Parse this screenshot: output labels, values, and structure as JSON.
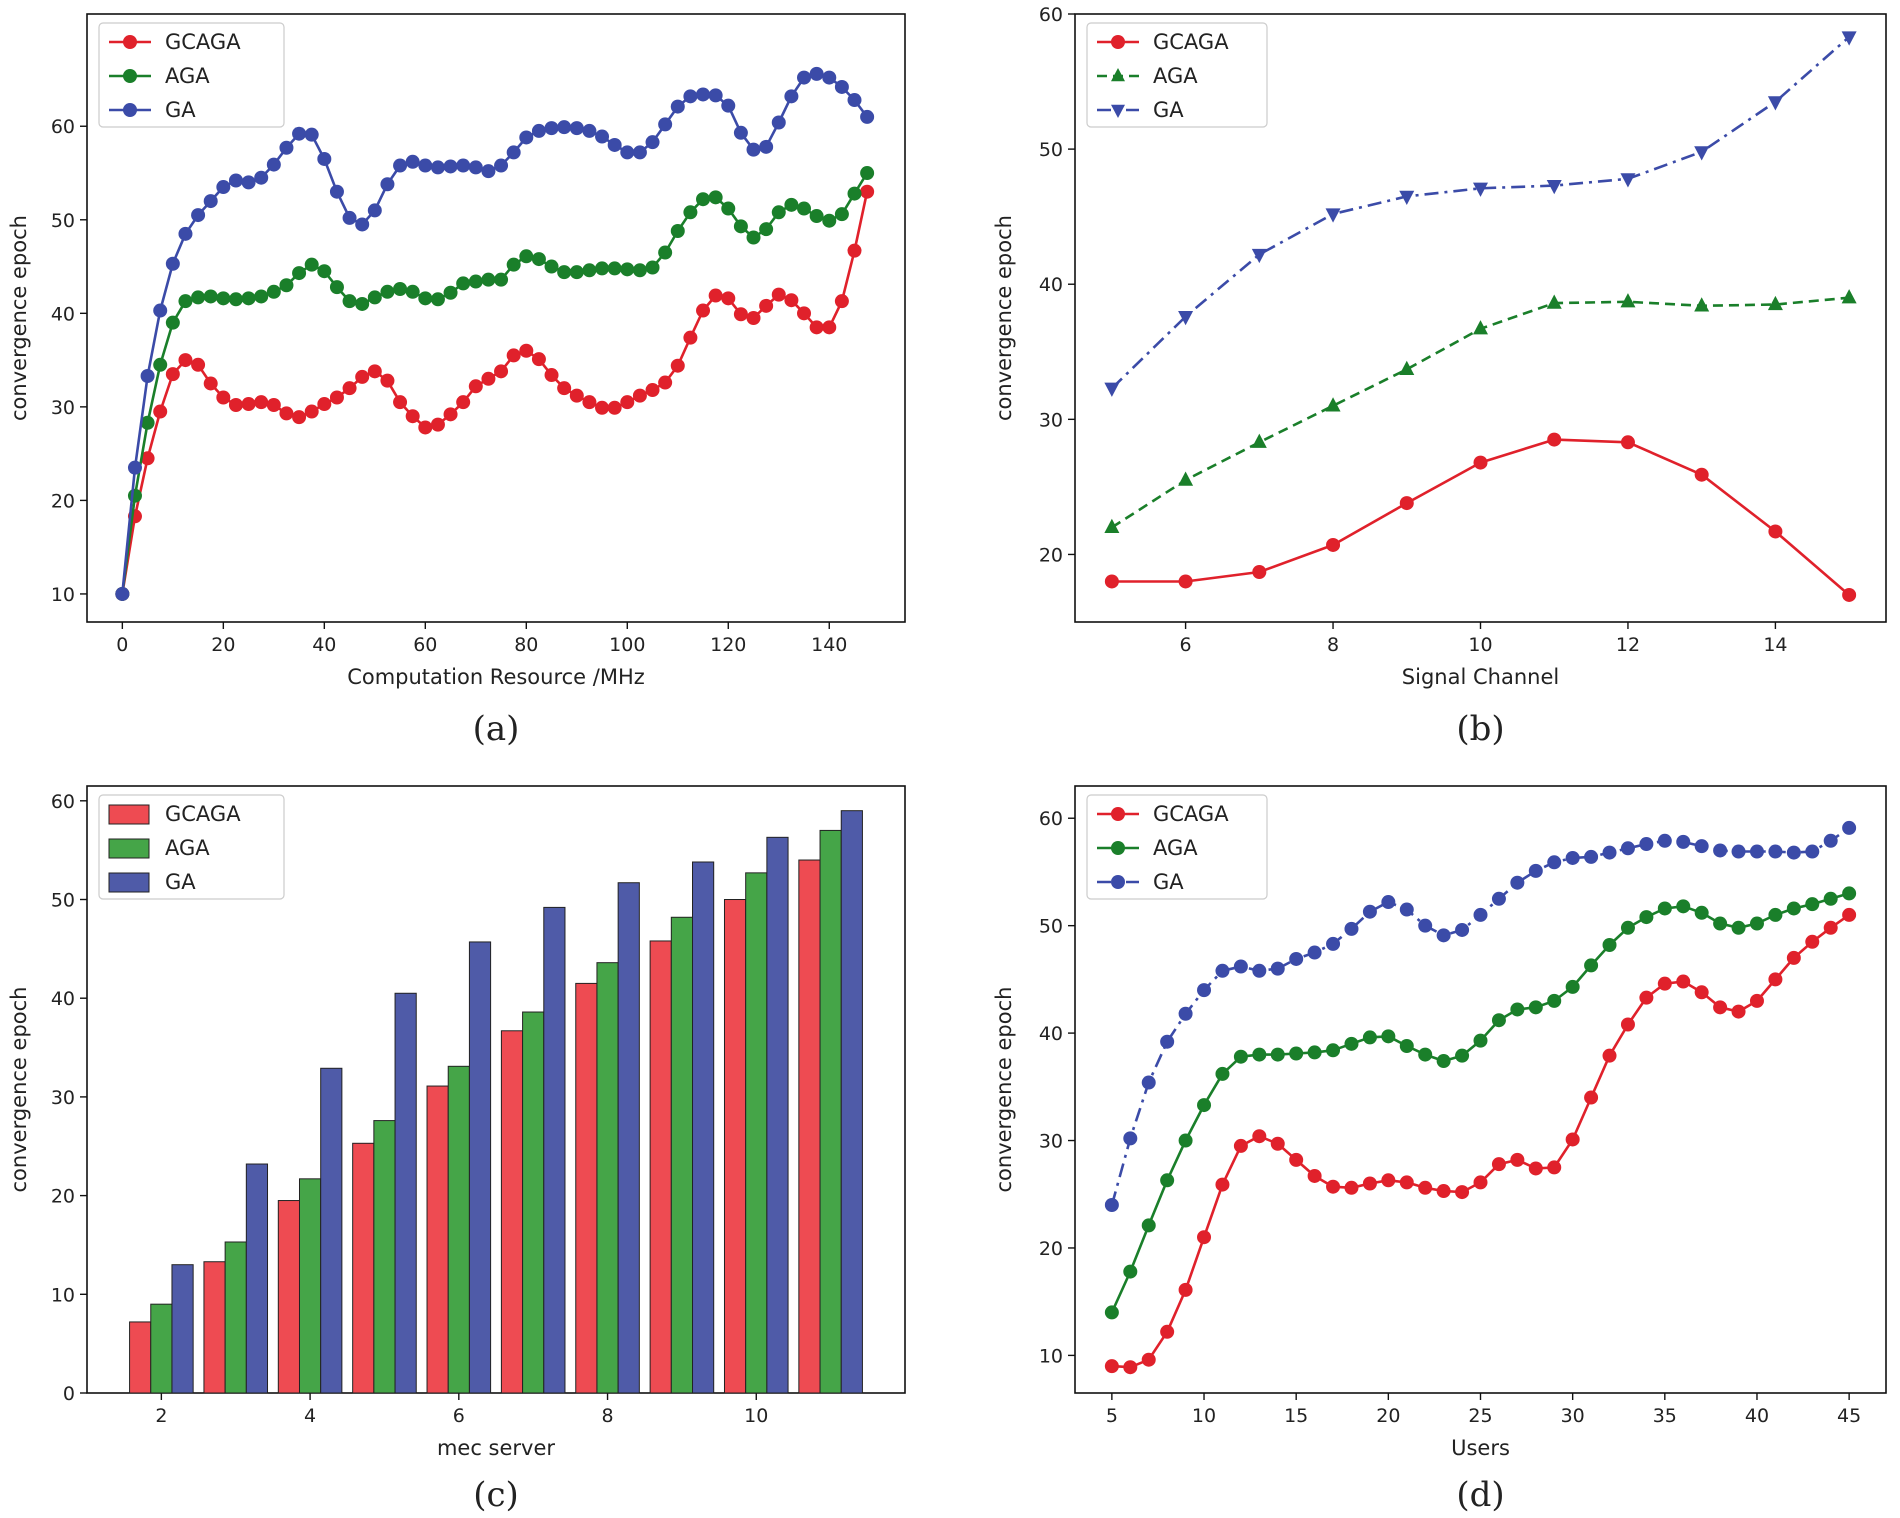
{
  "colors": {
    "GCAGA": "#e0212b",
    "AGA": "#1a7f2a",
    "GA": "#3b4ba8",
    "bar_GCAGA": "#ee4b52",
    "bar_AGA": "#45a548",
    "bar_GA": "#4f5ba8"
  },
  "chart_data": [
    {
      "id": "a",
      "caption": "(a)",
      "type": "line",
      "xlabel": "Computation Resource /MHz",
      "ylabel": "convergence epoch",
      "xlim": [
        -7,
        155
      ],
      "ylim": [
        7,
        72
      ],
      "xticks": [
        0,
        20,
        40,
        60,
        80,
        100,
        120,
        140
      ],
      "yticks": [
        10,
        20,
        30,
        40,
        50,
        60
      ],
      "legend": "top-left",
      "grid": false,
      "x": [
        0,
        2.5,
        5,
        7.5,
        10,
        12.5,
        15,
        17.5,
        20,
        22.5,
        25,
        27.5,
        30,
        32.5,
        35,
        37.5,
        40,
        42.5,
        45,
        47.5,
        50,
        52.5,
        55,
        57.5,
        60,
        62.5,
        65,
        67.5,
        70,
        72.5,
        75,
        77.5,
        80,
        82.5,
        85,
        87.5,
        90,
        92.5,
        95,
        97.5,
        100,
        102.5,
        105,
        107.5,
        110,
        112.5,
        115,
        117.5,
        120,
        122.5,
        125,
        127.5,
        130,
        132.5,
        135,
        137.5,
        140,
        142.5,
        145,
        147.5
      ],
      "series": [
        {
          "name": "GCAGA",
          "marker": "circle",
          "dash": "solid",
          "values": [
            10,
            18.3,
            24.5,
            29.5,
            33.5,
            35,
            34.5,
            32.5,
            31,
            30.2,
            30.3,
            30.5,
            30.2,
            29.3,
            28.9,
            29.5,
            30.3,
            31,
            32,
            33.2,
            33.8,
            32.8,
            30.5,
            29,
            27.8,
            28.1,
            29.2,
            30.5,
            32.2,
            33,
            33.8,
            35.5,
            36,
            35.1,
            33.4,
            32,
            31.2,
            30.5,
            29.9,
            29.9,
            30.5,
            31.2,
            31.8,
            32.6,
            34.4,
            37.4,
            40.3,
            41.9,
            41.6,
            39.9,
            39.5,
            40.8,
            42,
            41.4,
            40,
            38.5,
            38.5,
            41.3,
            46.7,
            53
          ]
        },
        {
          "name": "AGA",
          "marker": "circle",
          "dash": "solid",
          "values": [
            10,
            20.5,
            28.3,
            34.5,
            39,
            41.3,
            41.7,
            41.8,
            41.6,
            41.5,
            41.6,
            41.8,
            42.3,
            43,
            44.3,
            45.2,
            44.5,
            42.8,
            41.3,
            41,
            41.7,
            42.3,
            42.6,
            42.3,
            41.6,
            41.5,
            42.2,
            43.2,
            43.4,
            43.6,
            43.6,
            45.2,
            46.1,
            45.8,
            45,
            44.4,
            44.4,
            44.6,
            44.8,
            44.8,
            44.7,
            44.6,
            44.9,
            46.5,
            48.8,
            50.8,
            52.2,
            52.4,
            51.2,
            49.3,
            48.1,
            49,
            50.8,
            51.6,
            51.2,
            50.4,
            49.9,
            50.6,
            52.8,
            55
          ]
        },
        {
          "name": "GA",
          "marker": "circle",
          "dash": "solid",
          "values": [
            10,
            23.5,
            33.3,
            40.3,
            45.3,
            48.5,
            50.5,
            52,
            53.5,
            54.2,
            54,
            54.5,
            55.9,
            57.7,
            59.2,
            59.1,
            56.5,
            53,
            50.2,
            49.5,
            51,
            53.8,
            55.8,
            56.2,
            55.8,
            55.6,
            55.7,
            55.8,
            55.6,
            55.2,
            55.8,
            57.2,
            58.8,
            59.5,
            59.8,
            59.9,
            59.8,
            59.5,
            58.9,
            58,
            57.2,
            57.2,
            58.3,
            60.2,
            62.1,
            63.2,
            63.4,
            63.3,
            62.2,
            59.3,
            57.5,
            57.8,
            60.4,
            63.2,
            65.2,
            65.6,
            65.2,
            64.2,
            62.8,
            61
          ]
        }
      ]
    },
    {
      "id": "b",
      "caption": "(b)",
      "type": "line",
      "xlabel": "Signal Channel",
      "ylabel": "convergence epoch",
      "xlim": [
        4.5,
        15.5
      ],
      "ylim": [
        15,
        60
      ],
      "xticks": [
        6,
        8,
        10,
        12,
        14
      ],
      "yticks": [
        20,
        30,
        40,
        50,
        60
      ],
      "legend": "top-left",
      "grid": false,
      "x": [
        5,
        6,
        7,
        8,
        9,
        10,
        11,
        12,
        13,
        14,
        15
      ],
      "series": [
        {
          "name": "GCAGA",
          "marker": "circle",
          "dash": "solid",
          "values": [
            18,
            18,
            18.7,
            20.7,
            23.8,
            26.8,
            28.5,
            28.3,
            25.9,
            21.7,
            17
          ]
        },
        {
          "name": "AGA",
          "marker": "triangle-up",
          "dash": "dashed",
          "values": [
            22,
            25.5,
            28.3,
            31,
            33.7,
            36.7,
            38.6,
            38.7,
            38.4,
            38.5,
            39
          ]
        },
        {
          "name": "GA",
          "marker": "triangle-down",
          "dash": "dashdot",
          "values": [
            32.3,
            37.6,
            42.2,
            45.2,
            46.5,
            47.1,
            47.3,
            47.8,
            49.8,
            53.5,
            58.3
          ]
        }
      ]
    },
    {
      "id": "c",
      "caption": "(c)",
      "type": "bar",
      "xlabel": "mec server",
      "ylabel": "convergence epoch",
      "xlim": [
        1,
        12
      ],
      "ylim": [
        0,
        61.5
      ],
      "xticks": [
        2,
        4,
        6,
        8,
        10
      ],
      "yticks": [
        0,
        10,
        20,
        30,
        40,
        50,
        60
      ],
      "legend": "top-left",
      "grid": false,
      "categories": [
        2,
        3,
        4,
        5,
        6,
        7,
        8,
        9,
        10,
        11
      ],
      "series": [
        {
          "name": "GCAGA",
          "values": [
            7.2,
            13.3,
            19.5,
            25.3,
            31.1,
            36.7,
            41.5,
            45.8,
            50,
            54
          ]
        },
        {
          "name": "AGA",
          "values": [
            9,
            15.3,
            21.7,
            27.6,
            33.1,
            38.6,
            43.6,
            48.2,
            52.7,
            57
          ]
        },
        {
          "name": "GA",
          "values": [
            13,
            23.2,
            32.9,
            40.5,
            45.7,
            49.2,
            51.7,
            53.8,
            56.3,
            59
          ]
        }
      ]
    },
    {
      "id": "d",
      "caption": "(d)",
      "type": "line",
      "xlabel": "Users",
      "ylabel": "convergence epoch",
      "xlim": [
        3,
        47
      ],
      "ylim": [
        6.5,
        63
      ],
      "xticks": [
        5,
        10,
        15,
        20,
        25,
        30,
        35,
        40,
        45
      ],
      "yticks": [
        10,
        20,
        30,
        40,
        50,
        60
      ],
      "legend": "top-left",
      "grid": false,
      "x": [
        5,
        6,
        7,
        8,
        9,
        10,
        11,
        12,
        13,
        14,
        15,
        16,
        17,
        18,
        19,
        20,
        21,
        22,
        23,
        24,
        25,
        26,
        27,
        28,
        29,
        30,
        31,
        32,
        33,
        34,
        35,
        36,
        37,
        38,
        39,
        40,
        41,
        42,
        43,
        44,
        45
      ],
      "series": [
        {
          "name": "GCAGA",
          "marker": "circle",
          "dash": "solid",
          "values": [
            9,
            8.9,
            9.6,
            12.2,
            16.1,
            21,
            25.9,
            29.5,
            30.4,
            29.7,
            28.2,
            26.7,
            25.7,
            25.6,
            26,
            26.3,
            26.1,
            25.6,
            25.3,
            25.2,
            26.1,
            27.8,
            28.2,
            27.4,
            27.5,
            30.1,
            34,
            37.9,
            40.8,
            43.3,
            44.6,
            44.8,
            43.8,
            42.4,
            42,
            43,
            45,
            47,
            48.5,
            49.8,
            51
          ]
        },
        {
          "name": "AGA",
          "marker": "circle",
          "dash": "solid",
          "values": [
            14,
            17.8,
            22.1,
            26.3,
            30,
            33.3,
            36.2,
            37.8,
            38,
            38,
            38.1,
            38.2,
            38.4,
            39,
            39.6,
            39.7,
            38.8,
            38,
            37.4,
            37.9,
            39.3,
            41.2,
            42.2,
            42.4,
            43,
            44.3,
            46.3,
            48.2,
            49.8,
            50.8,
            51.6,
            51.8,
            51.2,
            50.2,
            49.8,
            50.2,
            51,
            51.6,
            52,
            52.5,
            53
          ]
        },
        {
          "name": "GA",
          "marker": "circle",
          "dash": "dashdot",
          "values": [
            24,
            30.2,
            35.4,
            39.2,
            41.8,
            44,
            45.8,
            46.2,
            45.8,
            46,
            46.9,
            47.5,
            48.3,
            49.7,
            51.3,
            52.2,
            51.5,
            50,
            49.1,
            49.6,
            51,
            52.5,
            54,
            55.1,
            55.9,
            56.3,
            56.4,
            56.8,
            57.2,
            57.6,
            57.9,
            57.8,
            57.4,
            57,
            56.9,
            56.9,
            56.9,
            56.8,
            56.9,
            57.9,
            59.1
          ]
        }
      ]
    }
  ]
}
